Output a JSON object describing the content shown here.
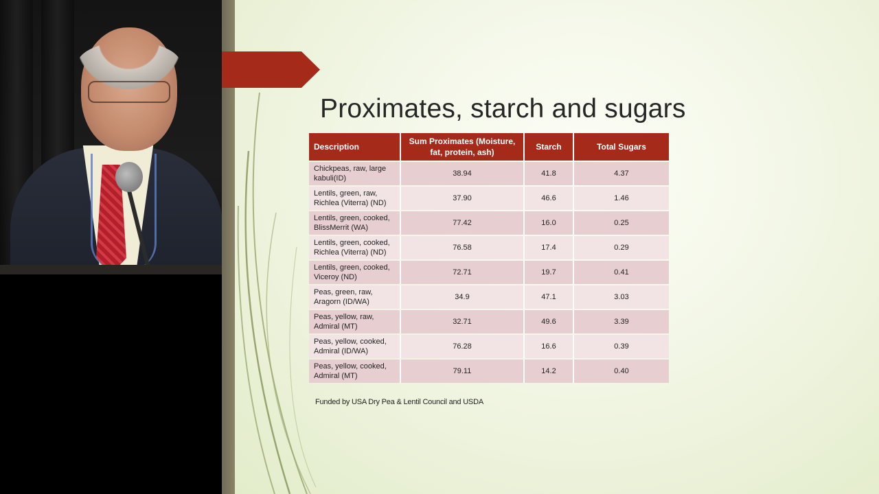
{
  "slide": {
    "title": "Proximates, starch and sugars",
    "table": {
      "headers": {
        "description": "Description",
        "sum_proximates": "Sum Proximates (Moisture, fat, protein, ash)",
        "starch": "Starch",
        "total_sugars": "Total Sugars"
      },
      "rows": [
        {
          "description": "Chickpeas, raw, large kabuli(ID)",
          "sum_proximates": "38.94",
          "starch": "41.8",
          "total_sugars": "4.37"
        },
        {
          "description": "Lentils, green, raw, Richlea (Viterra) (ND)",
          "sum_proximates": "37.90",
          "starch": "46.6",
          "total_sugars": "1.46"
        },
        {
          "description": "Lentils, green, cooked, BlissMerrit (WA)",
          "sum_proximates": "77.42",
          "starch": "16.0",
          "total_sugars": "0.25"
        },
        {
          "description": "Lentils, green, cooked, Richlea (Viterra) (ND)",
          "sum_proximates": "76.58",
          "starch": "17.4",
          "total_sugars": "0.29"
        },
        {
          "description": "Lentils, green, cooked, Viceroy (ND)",
          "sum_proximates": "72.71",
          "starch": "19.7",
          "total_sugars": "0.41"
        },
        {
          "description": "Peas, green, raw, Aragorn (ID/WA)",
          "sum_proximates": "34.9",
          "starch": "47.1",
          "total_sugars": "3.03"
        },
        {
          "description": "Peas, yellow, raw, Admiral (MT)",
          "sum_proximates": "32.71",
          "starch": "49.6",
          "total_sugars": "3.39"
        },
        {
          "description": "Peas, yellow, cooked, Admiral (ID/WA)",
          "sum_proximates": "76.28",
          "starch": "16.6",
          "total_sugars": "0.39"
        },
        {
          "description": "Peas, yellow, cooked, Admiral (MT)",
          "sum_proximates": "79.11",
          "starch": "14.2",
          "total_sugars": "0.40"
        }
      ]
    },
    "footnote": "Funded by USA Dry Pea & Lentil Council and USDA",
    "colors": {
      "accent": "#a62a1a",
      "row_odd": "#e7cfd1",
      "row_even": "#f2e4e5",
      "background": "#f2f6e5"
    }
  },
  "video": {
    "content": "speaker-at-podium"
  }
}
